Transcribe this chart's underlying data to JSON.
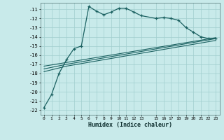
{
  "xlabel": "Humidex (Indice chaleur)",
  "background_color": "#c8eaea",
  "grid_color": "#a0cece",
  "line_color": "#1a6060",
  "xlim": [
    -0.5,
    23.5
  ],
  "ylim": [
    -22.5,
    -10.3
  ],
  "yticks": [
    -22,
    -21,
    -20,
    -19,
    -18,
    -17,
    -16,
    -15,
    -14,
    -13,
    -12,
    -11
  ],
  "xtick_positions": [
    0,
    1,
    2,
    3,
    4,
    5,
    6,
    7,
    8,
    9,
    10,
    11,
    12,
    13,
    15,
    16,
    17,
    18,
    19,
    20,
    21,
    22,
    23
  ],
  "xtick_labels": [
    "0",
    "1",
    "2",
    "3",
    "4",
    "5",
    "6",
    "7",
    "8",
    "9",
    "10",
    "11",
    "12",
    "13",
    "15",
    "16",
    "17",
    "18",
    "19",
    "20",
    "21",
    "22",
    "23"
  ],
  "series1_x": [
    0,
    1,
    2,
    3,
    4,
    5,
    6,
    7,
    8,
    9,
    10,
    11,
    12,
    13,
    15,
    16,
    17,
    18,
    19,
    20,
    21,
    22,
    23
  ],
  "series1_y": [
    -21.7,
    -20.3,
    -18.0,
    -16.5,
    -15.3,
    -15.0,
    -10.7,
    -11.2,
    -11.6,
    -11.3,
    -10.9,
    -10.9,
    -11.3,
    -11.7,
    -12.0,
    -11.9,
    -12.0,
    -12.2,
    -13.0,
    -13.5,
    -14.0,
    -14.2,
    -14.2
  ],
  "series2_x": [
    0,
    3,
    23
  ],
  "series2_y": [
    -17.2,
    -16.8,
    -14.1
  ],
  "series3_x": [
    0,
    3,
    23
  ],
  "series3_y": [
    -17.5,
    -17.0,
    -14.2
  ],
  "series4_x": [
    0,
    3,
    23
  ],
  "series4_y": [
    -17.8,
    -17.2,
    -14.4
  ]
}
